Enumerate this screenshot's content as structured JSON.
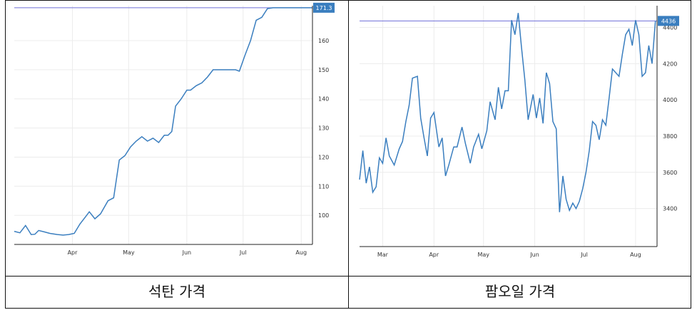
{
  "colors": {
    "line": "#3a7ebf",
    "reference_line": "#6f6fd8",
    "badge": "#3a7ebf",
    "grid": "#ececec",
    "axis": "#222222",
    "frame": "#111111"
  },
  "chart_data": [
    {
      "type": "line",
      "caption": "석탄 가격",
      "x_ticks": [
        "Apr",
        "May",
        "Jun",
        "Jul",
        "Aug"
      ],
      "y_ticks": [
        100,
        110,
        120,
        130,
        140,
        150,
        160
      ],
      "y_tick_labels": [
        "100",
        "110",
        "120",
        "130",
        "140",
        "150",
        "160"
      ],
      "ylim": [
        90,
        172
      ],
      "x_range": [
        "2021-03-01",
        "2021-08-07"
      ],
      "last_value": 171.3,
      "last_value_label": "171.3",
      "grid": true,
      "x": [
        "2021-03-01",
        "2021-03-04",
        "2021-03-07",
        "2021-03-10",
        "2021-03-12",
        "2021-03-14",
        "2021-03-17",
        "2021-03-20",
        "2021-03-24",
        "2021-03-27",
        "2021-03-30",
        "2021-04-02",
        "2021-04-05",
        "2021-04-08",
        "2021-04-10",
        "2021-04-13",
        "2021-04-16",
        "2021-04-20",
        "2021-04-23",
        "2021-04-26",
        "2021-04-29",
        "2021-05-02",
        "2021-05-05",
        "2021-05-08",
        "2021-05-11",
        "2021-05-14",
        "2021-05-17",
        "2021-05-20",
        "2021-05-22",
        "2021-05-24",
        "2021-05-26",
        "2021-05-29",
        "2021-06-01",
        "2021-06-03",
        "2021-06-06",
        "2021-06-09",
        "2021-06-12",
        "2021-06-15",
        "2021-06-18",
        "2021-06-21",
        "2021-06-24",
        "2021-06-27",
        "2021-06-29",
        "2021-07-02",
        "2021-07-05",
        "2021-07-08",
        "2021-07-11",
        "2021-07-14",
        "2021-07-17",
        "2021-07-20",
        "2021-07-23",
        "2021-07-26",
        "2021-07-29",
        "2021-08-01",
        "2021-08-03",
        "2021-08-05",
        "2021-08-07"
      ],
      "y": [
        94.5,
        94,
        96.5,
        93.4,
        93.5,
        94.8,
        94.3,
        93.8,
        93.4,
        93.2,
        93.4,
        93.8,
        97,
        99.5,
        101.2,
        98.8,
        100.5,
        105,
        106,
        119,
        120.5,
        123.5,
        125.5,
        127,
        125.5,
        126.5,
        125,
        127.5,
        127.5,
        128.8,
        137.5,
        140,
        143,
        143,
        144.5,
        145.5,
        147.5,
        150,
        150,
        150,
        150,
        150,
        149.5,
        155,
        160,
        167,
        168,
        171,
        171.3,
        171.3,
        171.3,
        171.3,
        171.3,
        171.3,
        171.3,
        171.3,
        171.3
      ]
    },
    {
      "type": "line",
      "caption": "팜오일 가격",
      "x_ticks": [
        "Mar",
        "Apr",
        "May",
        "Jun",
        "Jul",
        "Aug"
      ],
      "y_ticks": [
        3400,
        3600,
        3800,
        4000,
        4200,
        4400
      ],
      "y_tick_labels": [
        "3400",
        "3600",
        "3800",
        "4000",
        "4200",
        "4400"
      ],
      "ylim": [
        3190,
        4520
      ],
      "x_range": [
        "2021-02-15",
        "2021-08-14"
      ],
      "last_value": 4436,
      "last_value_label": "4436",
      "grid": true,
      "x": [
        "2021-02-15",
        "2021-02-17",
        "2021-02-19",
        "2021-02-21",
        "2021-02-23",
        "2021-02-25",
        "2021-02-27",
        "2021-03-01",
        "2021-03-03",
        "2021-03-05",
        "2021-03-08",
        "2021-03-11",
        "2021-03-13",
        "2021-03-15",
        "2021-03-17",
        "2021-03-19",
        "2021-03-22",
        "2021-03-24",
        "2021-03-26",
        "2021-03-28",
        "2021-03-30",
        "2021-04-01",
        "2021-04-04",
        "2021-04-06",
        "2021-04-08",
        "2021-04-10",
        "2021-04-13",
        "2021-04-15",
        "2021-04-18",
        "2021-04-20",
        "2021-04-23",
        "2021-04-25",
        "2021-04-28",
        "2021-04-30",
        "2021-05-03",
        "2021-05-05",
        "2021-05-08",
        "2021-05-10",
        "2021-05-12",
        "2021-05-14",
        "2021-05-16",
        "2021-05-18",
        "2021-05-20",
        "2021-05-22",
        "2021-05-24",
        "2021-05-26",
        "2021-05-28",
        "2021-05-31",
        "2021-06-02",
        "2021-06-04",
        "2021-06-06",
        "2021-06-08",
        "2021-06-10",
        "2021-06-12",
        "2021-06-14",
        "2021-06-16",
        "2021-06-18",
        "2021-06-20",
        "2021-06-22",
        "2021-06-24",
        "2021-06-26",
        "2021-06-28",
        "2021-06-30",
        "2021-07-02",
        "2021-07-04",
        "2021-07-06",
        "2021-07-08",
        "2021-07-10",
        "2021-07-12",
        "2021-07-14",
        "2021-07-16",
        "2021-07-18",
        "2021-07-20",
        "2021-07-22",
        "2021-07-24",
        "2021-07-26",
        "2021-07-28",
        "2021-07-30",
        "2021-08-01",
        "2021-08-03",
        "2021-08-05",
        "2021-08-07",
        "2021-08-09",
        "2021-08-11",
        "2021-08-13"
      ],
      "y": [
        3560,
        3720,
        3540,
        3630,
        3490,
        3520,
        3680,
        3650,
        3790,
        3690,
        3640,
        3730,
        3770,
        3880,
        3970,
        4120,
        4130,
        3900,
        3790,
        3690,
        3900,
        3930,
        3740,
        3790,
        3580,
        3640,
        3740,
        3740,
        3850,
        3760,
        3650,
        3740,
        3810,
        3730,
        3830,
        3990,
        3890,
        4070,
        3950,
        4050,
        4050,
        4440,
        4360,
        4480,
        4290,
        4110,
        3890,
        4030,
        3900,
        4010,
        3870,
        4150,
        4090,
        3880,
        3840,
        3380,
        3580,
        3450,
        3390,
        3430,
        3400,
        3440,
        3510,
        3600,
        3720,
        3880,
        3860,
        3780,
        3890,
        3860,
        4010,
        4170,
        4150,
        4130,
        4250,
        4360,
        4390,
        4300,
        4440,
        4360,
        4130,
        4150,
        4300,
        4200,
        4436
      ]
    }
  ]
}
